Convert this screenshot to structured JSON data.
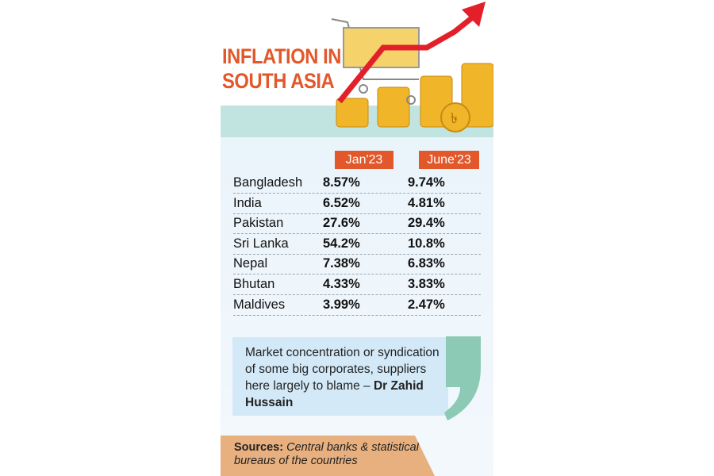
{
  "title_lines": [
    "INFLATION IN",
    "SOUTH ASIA"
  ],
  "colors": {
    "accent": "#e2582a",
    "band": "#c2e4e0",
    "quote_bg": "#d3e9f7",
    "sources_bg": "#e8b07f"
  },
  "chart_data": {
    "type": "table",
    "title": "INFLATION IN SOUTH ASIA",
    "columns": [
      "Jan'23",
      "June'23"
    ],
    "rows": [
      {
        "country": "Bangladesh",
        "jan": "8.57%",
        "june": "9.74%"
      },
      {
        "country": "India",
        "jan": "6.52%",
        "june": "4.81%"
      },
      {
        "country": "Pakistan",
        "jan": "27.6%",
        "june": "29.4%"
      },
      {
        "country": "Sri Lanka",
        "jan": "54.2%",
        "june": "10.8%"
      },
      {
        "country": "Nepal",
        "jan": "7.38%",
        "june": "6.83%"
      },
      {
        "country": "Bhutan",
        "jan": "4.33%",
        "june": "3.83%"
      },
      {
        "country": "Maldives",
        "jan": "3.99%",
        "june": "2.47%"
      }
    ]
  },
  "quote": {
    "text": "Market concentration or syndication of some big corporates, suppliers here largely to blame – ",
    "author": "Dr Zahid Hussain"
  },
  "sources": {
    "label": "Sources:",
    "text": "Central banks & statistical bureaus of the countries"
  }
}
